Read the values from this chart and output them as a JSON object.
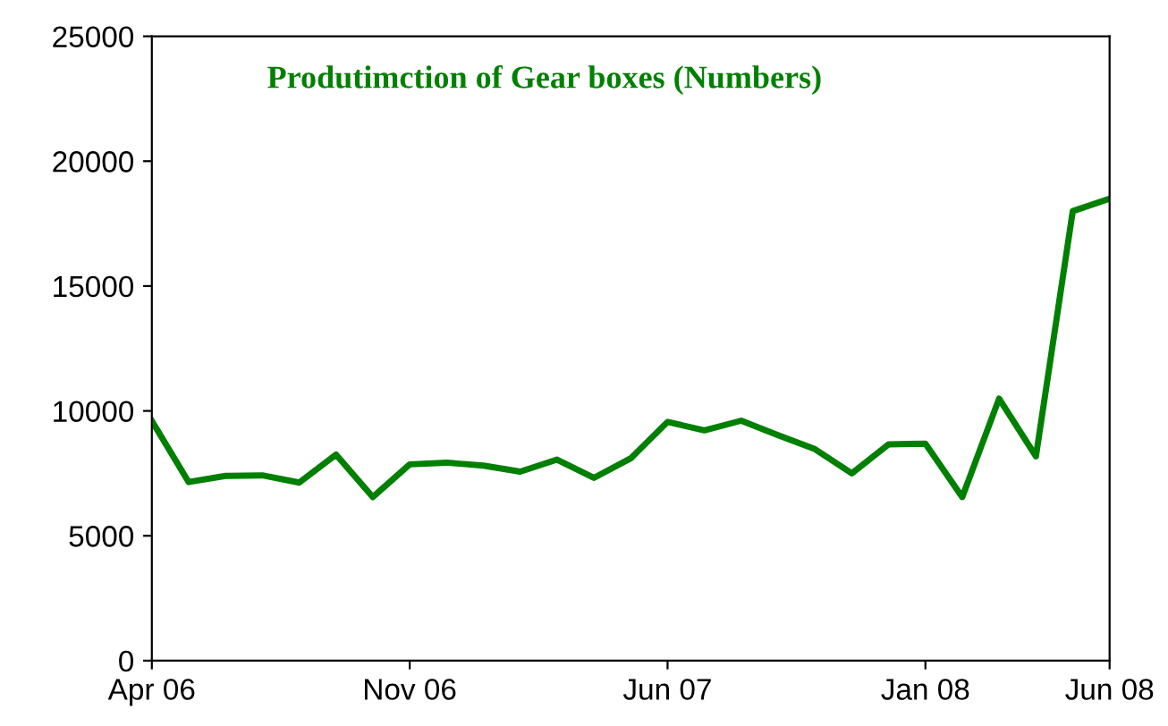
{
  "chart_data": {
    "type": "line",
    "title": "Produtimction of Gear boxes (Numbers)",
    "x": [
      "2006-04",
      "2006-05",
      "2006-06",
      "2006-07",
      "2006-08",
      "2006-09",
      "2006-10",
      "2006-11",
      "2006-12",
      "2007-01",
      "2007-02",
      "2007-03",
      "2007-04",
      "2007-05",
      "2007-06",
      "2007-07",
      "2007-08",
      "2007-09",
      "2007-10",
      "2007-11",
      "2007-12",
      "2008-01",
      "2008-02",
      "2008-03",
      "2008-04",
      "2008-05",
      "2008-06"
    ],
    "series": [
      {
        "color": "#008000",
        "values": [
          9600,
          7150,
          7400,
          7420,
          7130,
          8250,
          6550,
          7860,
          7930,
          7810,
          7570,
          8050,
          7320,
          8100,
          9560,
          9220,
          9610,
          9030,
          8470,
          7500,
          8660,
          8690,
          6550,
          10490,
          8180,
          18000,
          18500
        ]
      }
    ],
    "xlim": [
      "2006-04",
      "2008-06"
    ],
    "xticks": [
      {
        "value": "2006-04",
        "label": "Apr 06"
      },
      {
        "value": "2006-11",
        "label": "Nov 06"
      },
      {
        "value": "2007-06",
        "label": "Jun 07"
      },
      {
        "value": "2008-01",
        "label": "Jan 08"
      },
      {
        "value": "2008-06",
        "label": "Jun 08"
      }
    ],
    "ylim": [
      0,
      25000
    ],
    "yticks": [
      0,
      5000,
      10000,
      15000,
      20000,
      25000
    ],
    "grid": false,
    "legend": false,
    "marker": "none",
    "line_style": "solid"
  }
}
